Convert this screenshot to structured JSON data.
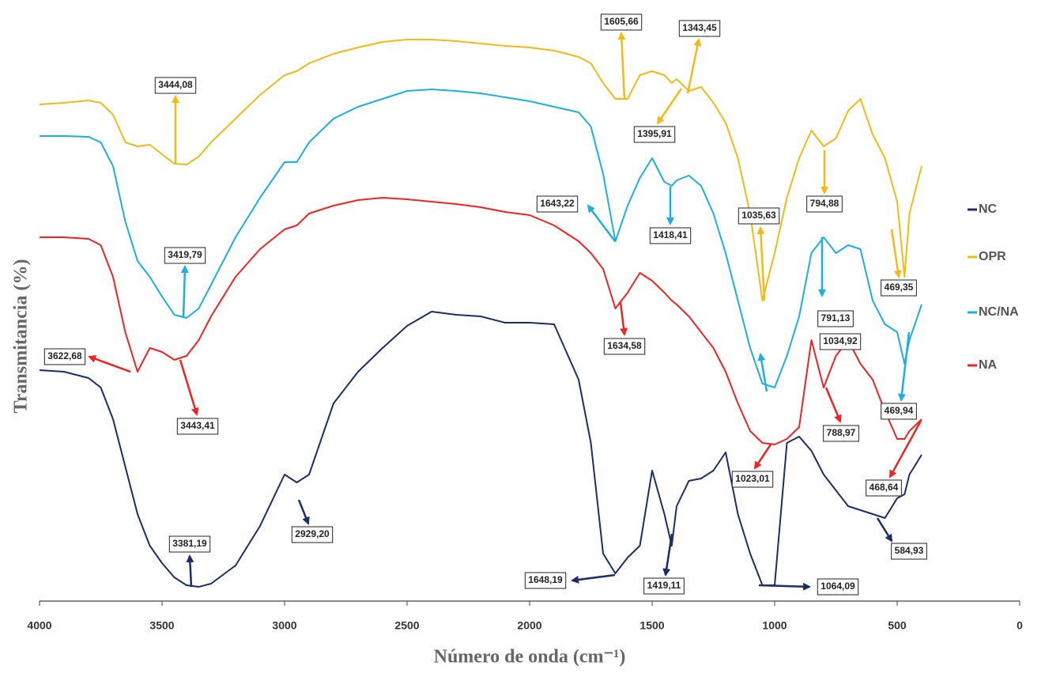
{
  "chart_data": {
    "type": "line",
    "xlabel": "Número de onda (cm⁻¹)",
    "ylabel": "Transmitancia (%)",
    "xlim": [
      4000,
      0
    ],
    "xticks": [
      4000,
      3500,
      3000,
      2500,
      2000,
      1500,
      1000,
      500,
      0
    ],
    "ylim": [
      0,
      72
    ],
    "legend": "right",
    "x": [
      4000,
      3900,
      3800,
      3750,
      3700,
      3650,
      3600,
      3550,
      3500,
      3450,
      3400,
      3350,
      3300,
      3200,
      3100,
      3000,
      2950,
      2900,
      2800,
      2700,
      2600,
      2500,
      2400,
      2300,
      2200,
      2100,
      2000,
      1900,
      1800,
      1750,
      1700,
      1650,
      1600,
      1550,
      1500,
      1450,
      1420,
      1400,
      1350,
      1300,
      1250,
      1200,
      1150,
      1100,
      1050,
      1000,
      950,
      900,
      850,
      800,
      750,
      700,
      650,
      600,
      550,
      500,
      470,
      450,
      400
    ],
    "series": [
      {
        "name": "NC",
        "color": "#1b2d6b",
        "values": [
          29.2,
          29,
          28.2,
          27,
          23,
          17,
          11,
          7,
          4.8,
          3,
          2,
          1.8,
          2.2,
          4.5,
          9.5,
          16,
          15,
          16,
          25,
          29,
          32,
          34.8,
          36.6,
          36.2,
          36,
          35.2,
          35.2,
          35,
          28,
          20,
          6,
          3.5,
          5.5,
          7,
          16.5,
          11,
          7,
          12,
          15.2,
          15.5,
          16.5,
          18.8,
          11,
          6,
          2,
          2,
          20,
          20.8,
          19,
          16,
          14,
          12,
          11.5,
          11,
          10.5,
          13,
          13.5,
          16,
          18.5
        ],
        "annotations": [
          "3381,19",
          "2929,20",
          "1648,19",
          "1419,11",
          "1064,09",
          "584,93"
        ]
      },
      {
        "name": "OPR",
        "color": "#f5b914",
        "values": [
          62.8,
          63,
          63.3,
          63,
          61.5,
          58,
          57.5,
          57.7,
          56.5,
          55.3,
          55.2,
          56.2,
          58,
          61,
          64,
          66.5,
          67,
          68,
          69.2,
          70,
          70.7,
          71,
          71,
          70.8,
          70.5,
          70.2,
          70,
          69.6,
          68.8,
          68,
          65.5,
          63.5,
          63.5,
          66.5,
          67,
          66.5,
          65.5,
          66,
          64.5,
          65,
          63,
          60.5,
          56,
          49,
          38,
          44,
          51,
          56,
          59.5,
          57.5,
          58.5,
          62,
          63.5,
          59,
          56,
          50.5,
          41,
          49,
          55
        ],
        "annotations": [
          "3444,08",
          "1605,66",
          "1343,45",
          "1395,91",
          "1035,63",
          "794,88",
          "469,35"
        ]
      },
      {
        "name": "NC/NA",
        "color": "#1caee6",
        "values": [
          58.8,
          58.8,
          58.7,
          58,
          55,
          48,
          43,
          41,
          38.5,
          36.2,
          35.8,
          37,
          40,
          46,
          51,
          55.5,
          55.5,
          58,
          61,
          62.5,
          63.5,
          64.5,
          64.7,
          64.5,
          64.2,
          63.7,
          63.2,
          62.5,
          61.8,
          60,
          54,
          45.5,
          50,
          53.5,
          56,
          53,
          52.5,
          53.2,
          53.8,
          52.5,
          49,
          44,
          38,
          32,
          27.5,
          27,
          31,
          36,
          44,
          46,
          44,
          45,
          44.5,
          38,
          35,
          34,
          30,
          33,
          37.5
        ],
        "annotations": [
          "3419,79",
          "1643,22",
          "1418,41",
          "791,13",
          "1034,92",
          "469,94"
        ]
      },
      {
        "name": "NA",
        "color": "#f02323",
        "values": [
          46,
          46,
          45.8,
          45,
          41,
          34,
          29,
          32,
          31.5,
          30.5,
          31,
          33,
          36,
          41,
          44.5,
          47,
          47.5,
          49,
          50,
          50.7,
          51,
          50.8,
          50.5,
          50.2,
          49.8,
          49.2,
          48.8,
          47.5,
          45.5,
          44,
          42,
          37,
          39,
          41.5,
          40.5,
          39,
          38,
          37.5,
          36,
          34,
          32,
          29,
          25,
          21.5,
          20,
          19.8,
          20.5,
          22,
          33,
          27,
          31,
          33,
          30,
          28,
          24,
          20.5,
          20.5,
          21.5,
          23
        ],
        "annotations": [
          "3622,68",
          "3443,41",
          "1634,58",
          "1023,01",
          "788,97",
          "468,64"
        ]
      }
    ]
  }
}
